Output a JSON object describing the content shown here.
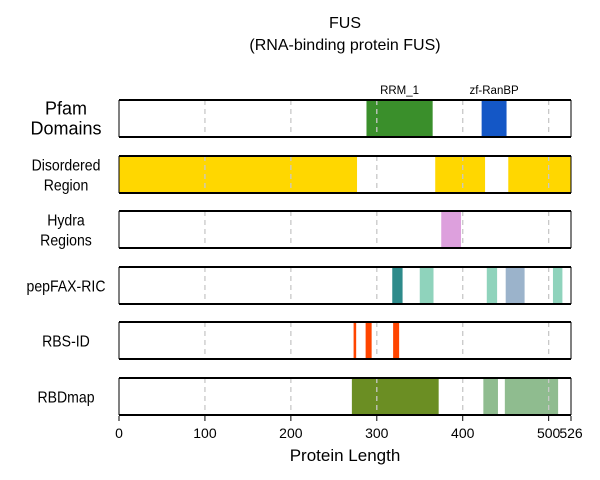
{
  "chart_data": {
    "type": "bar",
    "title": "FUS",
    "subtitle": "(RNA-binding protein FUS)",
    "xlabel": "Protein Length",
    "xlim": [
      0,
      526
    ],
    "xticks": [
      0,
      100,
      200,
      300,
      400,
      500,
      526
    ],
    "grid": {
      "vertical_dashed": [
        100,
        200,
        300,
        400,
        500
      ]
    },
    "tracks": [
      {
        "label_lines": [
          "Pfam",
          "Domains"
        ],
        "segments": [
          {
            "start": 288,
            "end": 365,
            "color": "#3a8f2b",
            "label": "RRM_1"
          },
          {
            "start": 422,
            "end": 451,
            "color": "#1457c6",
            "label": "zf-RanBP"
          }
        ]
      },
      {
        "label_lines": [
          "Disordered",
          "Region"
        ],
        "segments": [
          {
            "start": 0,
            "end": 277,
            "color": "#ffd700"
          },
          {
            "start": 368,
            "end": 426,
            "color": "#ffd700"
          },
          {
            "start": 453,
            "end": 526,
            "color": "#ffd700"
          }
        ]
      },
      {
        "label_lines": [
          "Hydra",
          "Regions"
        ],
        "segments": [
          {
            "start": 375,
            "end": 398,
            "color": "#dda0dd"
          }
        ]
      },
      {
        "label_lines": [
          "pepFAX-RIC"
        ],
        "segments": [
          {
            "start": 318,
            "end": 330,
            "color": "#2e8b8b"
          },
          {
            "start": 350,
            "end": 366,
            "color": "#8fd3bc"
          },
          {
            "start": 428,
            "end": 440,
            "color": "#8fd3bc"
          },
          {
            "start": 450,
            "end": 472,
            "color": "#9bb3cb"
          },
          {
            "start": 505,
            "end": 516,
            "color": "#8fd3bc"
          }
        ]
      },
      {
        "label_lines": [
          "RBS-ID"
        ],
        "segments": [
          {
            "start": 273,
            "end": 276,
            "color": "#ff4500"
          },
          {
            "start": 287,
            "end": 294,
            "color": "#ff4500"
          },
          {
            "start": 319,
            "end": 326,
            "color": "#ff4500"
          }
        ]
      },
      {
        "label_lines": [
          "RBDmap"
        ],
        "segments": [
          {
            "start": 271,
            "end": 372,
            "color": "#6b8e23"
          },
          {
            "start": 424,
            "end": 441,
            "color": "#8fbc8f"
          },
          {
            "start": 449,
            "end": 511,
            "color": "#8fbc8f"
          }
        ]
      }
    ]
  }
}
